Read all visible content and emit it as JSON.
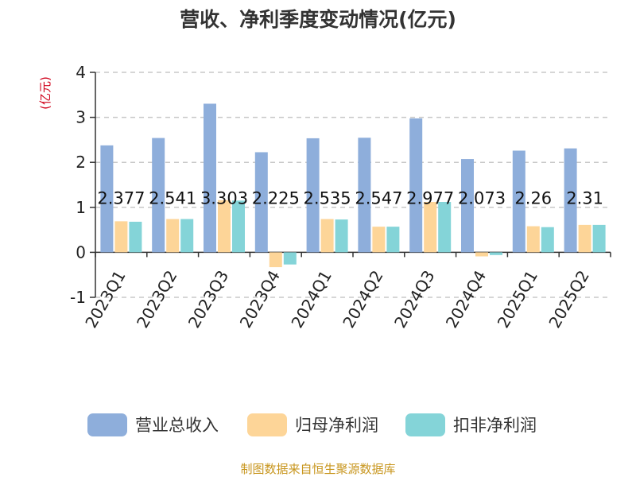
{
  "chart_data": {
    "type": "bar",
    "title": "营收、净利季度变动情况(亿元)",
    "unit_label": "(亿元)",
    "ylim": [
      -1,
      4
    ],
    "yticks": [
      4,
      3,
      2,
      1,
      0,
      -1
    ],
    "grid": "horizontal-dashed",
    "legend_position": "bottom",
    "categories": [
      "2023Q1",
      "2023Q2",
      "2023Q3",
      "2023Q4",
      "2024Q1",
      "2024Q2",
      "2024Q3",
      "2024Q4",
      "2025Q1",
      "2025Q2"
    ],
    "series": [
      {
        "name": "营业总收入",
        "color": "#8eaedb",
        "values": [
          2.377,
          2.541,
          3.303,
          2.225,
          2.535,
          2.547,
          2.977,
          2.073,
          2.26,
          2.31
        ]
      },
      {
        "name": "归母净利润",
        "color": "#fdd598",
        "values": [
          0.69,
          0.74,
          1.16,
          -0.33,
          0.74,
          0.57,
          1.12,
          -0.09,
          0.58,
          0.61
        ]
      },
      {
        "name": "扣非净利润",
        "color": "#84d4d8",
        "values": [
          0.68,
          0.74,
          1.15,
          -0.27,
          0.73,
          0.57,
          1.12,
          -0.06,
          0.56,
          0.61
        ]
      }
    ],
    "data_labels": [
      "2.377",
      "2.541",
      "3.303",
      "2.225",
      "2.535",
      "2.547",
      "2.977",
      "2.073",
      "2.26",
      "2.31"
    ]
  },
  "footer": {
    "source": "制图数据来自恒生聚源数据库"
  }
}
